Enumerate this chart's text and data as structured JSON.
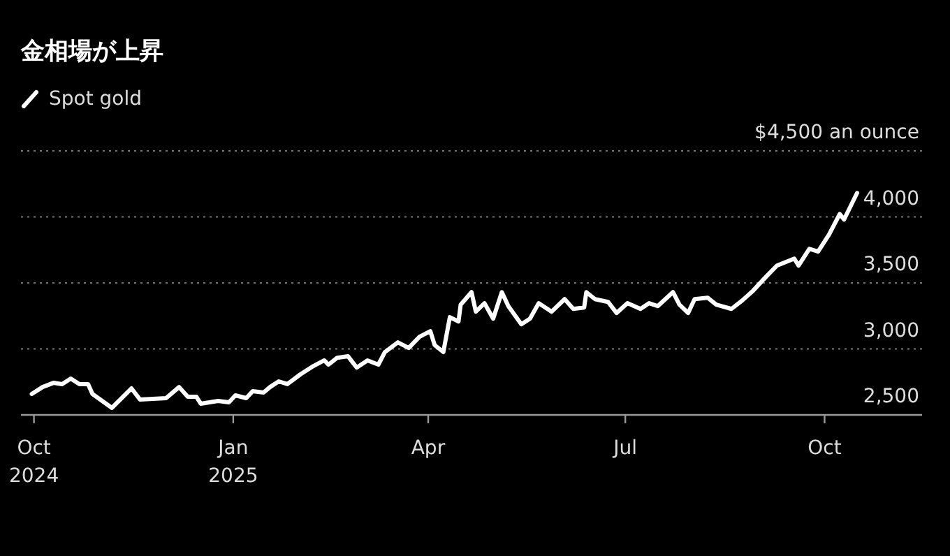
{
  "chart_data": {
    "type": "line",
    "title": "金相場が上昇",
    "legend": "top left",
    "grid": "y",
    "line_style": "solid",
    "marker": "none",
    "xlim": [
      "2024-09-25",
      "2025-11-15"
    ],
    "xticks": [
      {
        "value": "2024-10-01",
        "label": "Oct 2024"
      },
      {
        "value": "2025-01-01",
        "label": "Jan 2025"
      },
      {
        "value": "2025-04-01",
        "label": "Apr"
      },
      {
        "value": "2025-07-01",
        "label": "Jul"
      },
      {
        "value": "2025-10-01",
        "label": "Oct"
      }
    ],
    "ylim": [
      2500,
      4500
    ],
    "yticks": [
      {
        "value": 2500,
        "label": "2,500"
      },
      {
        "value": 3000,
        "label": "3,000"
      },
      {
        "value": 3500,
        "label": "3,500"
      },
      {
        "value": 4000,
        "label": "4,000"
      },
      {
        "value": 4500,
        "label": "$4,500 an ounce"
      }
    ],
    "x": [
      "2024-09-30",
      "2024-10-05",
      "2024-10-10",
      "2024-10-14",
      "2024-10-18",
      "2024-10-22",
      "2024-10-26",
      "2024-10-28",
      "2024-11-06",
      "2024-11-15",
      "2024-11-19",
      "2024-12-01",
      "2024-12-07",
      "2024-12-11",
      "2024-12-15",
      "2024-12-17",
      "2024-12-25",
      "2024-12-30",
      "2025-01-02",
      "2025-01-07",
      "2025-01-10",
      "2025-01-15",
      "2025-01-18",
      "2025-01-22",
      "2025-01-26",
      "2025-02-01",
      "2025-02-07",
      "2025-02-12",
      "2025-02-14",
      "2025-02-18",
      "2025-02-23",
      "2025-02-27",
      "2025-03-04",
      "2025-03-09",
      "2025-03-12",
      "2025-03-18",
      "2025-03-23",
      "2025-03-28",
      "2025-04-02",
      "2025-04-04",
      "2025-04-08",
      "2025-04-11",
      "2025-04-15",
      "2025-04-16",
      "2025-04-21",
      "2025-04-23",
      "2025-04-27",
      "2025-05-01",
      "2025-05-05",
      "2025-05-08",
      "2025-05-14",
      "2025-05-18",
      "2025-05-22",
      "2025-05-28",
      "2025-06-03",
      "2025-06-07",
      "2025-06-12",
      "2025-06-13",
      "2025-06-17",
      "2025-06-23",
      "2025-06-27",
      "2025-07-02",
      "2025-07-08",
      "2025-07-12",
      "2025-07-16",
      "2025-07-23",
      "2025-07-26",
      "2025-07-30",
      "2025-08-02",
      "2025-08-08",
      "2025-08-12",
      "2025-08-19",
      "2025-08-24",
      "2025-08-29",
      "2025-09-04",
      "2025-09-09",
      "2025-09-17",
      "2025-09-19",
      "2025-09-24",
      "2025-09-28",
      "2025-10-03",
      "2025-10-08",
      "2025-10-10",
      "2025-10-16"
    ],
    "series": [
      {
        "name": "Spot gold",
        "color": "#ffffff",
        "values": [
          2659,
          2711,
          2743,
          2733,
          2775,
          2733,
          2733,
          2659,
          2553,
          2701,
          2616,
          2627,
          2711,
          2637,
          2637,
          2585,
          2606,
          2595,
          2648,
          2627,
          2680,
          2669,
          2711,
          2754,
          2733,
          2807,
          2870,
          2913,
          2881,
          2933,
          2944,
          2859,
          2913,
          2881,
          2976,
          3050,
          3007,
          3092,
          3134,
          3029,
          2976,
          3240,
          3208,
          3335,
          3430,
          3282,
          3346,
          3229,
          3430,
          3324,
          3187,
          3229,
          3346,
          3282,
          3377,
          3303,
          3314,
          3430,
          3377,
          3356,
          3272,
          3346,
          3303,
          3346,
          3324,
          3430,
          3335,
          3272,
          3377,
          3388,
          3335,
          3303,
          3367,
          3441,
          3547,
          3631,
          3684,
          3631,
          3758,
          3737,
          3864,
          4022,
          3980,
          4181
        ]
      }
    ]
  }
}
